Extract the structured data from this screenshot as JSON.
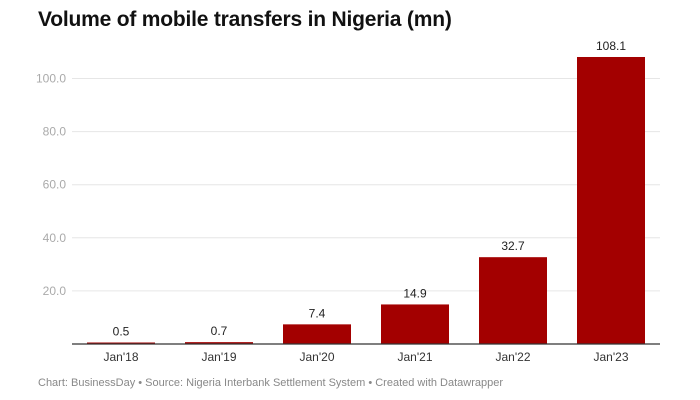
{
  "chart_data": {
    "type": "bar",
    "title": "Volume of mobile transfers in Nigeria (mn)",
    "categories": [
      "Jan'18",
      "Jan'19",
      "Jan'20",
      "Jan'21",
      "Jan'22",
      "Jan'23"
    ],
    "values": [
      0.5,
      0.7,
      7.4,
      14.9,
      32.7,
      108.1
    ],
    "value_labels": [
      "0.5",
      "0.7",
      "7.4",
      "14.9",
      "32.7",
      "108.1"
    ],
    "yticks": [
      20,
      40,
      60,
      80,
      100
    ],
    "ytick_labels": [
      "20.0",
      "40.0",
      "60.0",
      "80.0",
      "100.0"
    ],
    "ylim": [
      0,
      110
    ],
    "grid": true,
    "bar_color": "#a30000",
    "xlabel": "",
    "ylabel": ""
  },
  "footer": "Chart: BusinessDay • Source: Nigeria Interbank Settlement System • Created with Datawrapper"
}
